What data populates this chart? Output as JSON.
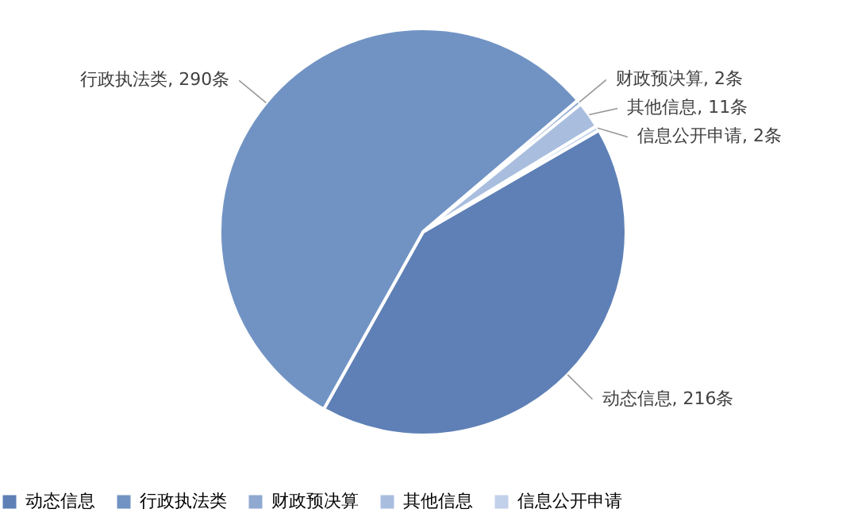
{
  "chart_data": {
    "type": "pie",
    "categories": [
      "动态信息",
      "行政执法类",
      "财政预决算",
      "其他信息",
      "信息公开申请"
    ],
    "values": [
      216,
      290,
      2,
      11,
      2
    ],
    "colors": [
      "#5e80b6",
      "#7193c4",
      "#8fa9d0",
      "#a9bedf",
      "#c2d1ea"
    ],
    "value_labels": [
      "动态信息, 216条",
      "行政执法类, 290条",
      "财政预决算, 2条",
      "其他信息, 11条",
      "信息公开申请, 2条"
    ],
    "legend": "bottom"
  }
}
